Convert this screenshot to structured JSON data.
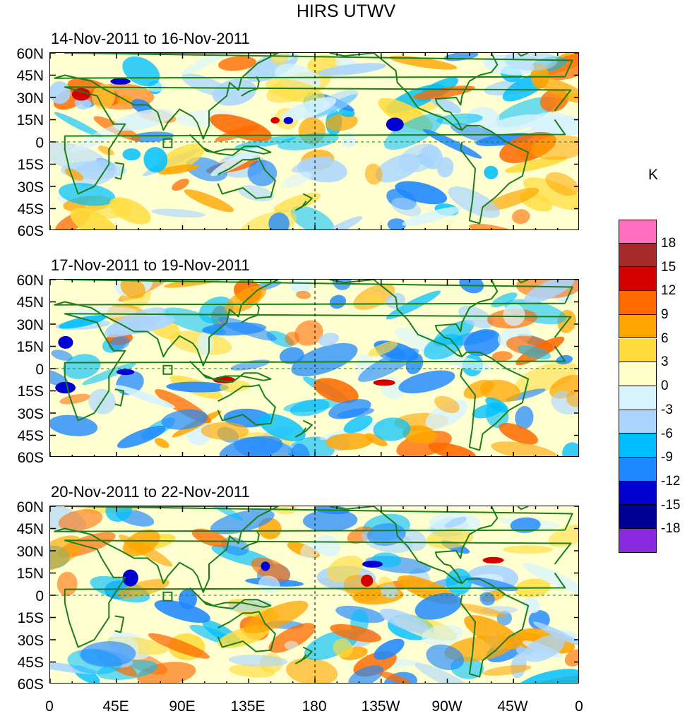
{
  "title": "HIRS UTWV",
  "panels": [
    {
      "label": "14-Nov-2011 to 16-Nov-2011"
    },
    {
      "label": "17-Nov-2011 to 19-Nov-2011"
    },
    {
      "label": "20-Nov-2011 to 22-Nov-2011"
    }
  ],
  "lat_ticks": [
    "60N",
    "45N",
    "30N",
    "15N",
    "0",
    "15S",
    "30S",
    "45S",
    "60S"
  ],
  "lon_ticks": [
    "0",
    "45E",
    "90E",
    "135E",
    "180",
    "135W",
    "90W",
    "45W",
    "0"
  ],
  "colorbar": {
    "unit": "K",
    "labels": [
      "18",
      "15",
      "12",
      "9",
      "6",
      "3",
      "0",
      "-3",
      "-6",
      "-9",
      "-12",
      "-15",
      "-18"
    ],
    "colors": [
      "#ff6fbf",
      "#a52a2a",
      "#d40000",
      "#ff6a00",
      "#ffa500",
      "#ffdc3c",
      "#ffffc8",
      "#d6f3ff",
      "#a9d5ff",
      "#00bfff",
      "#1e88ff",
      "#0000d2",
      "#000096",
      "#8a2be2"
    ]
  },
  "field_colors": {
    "coast": "#1a7f1a",
    "neutral": "#ffffd0"
  }
}
